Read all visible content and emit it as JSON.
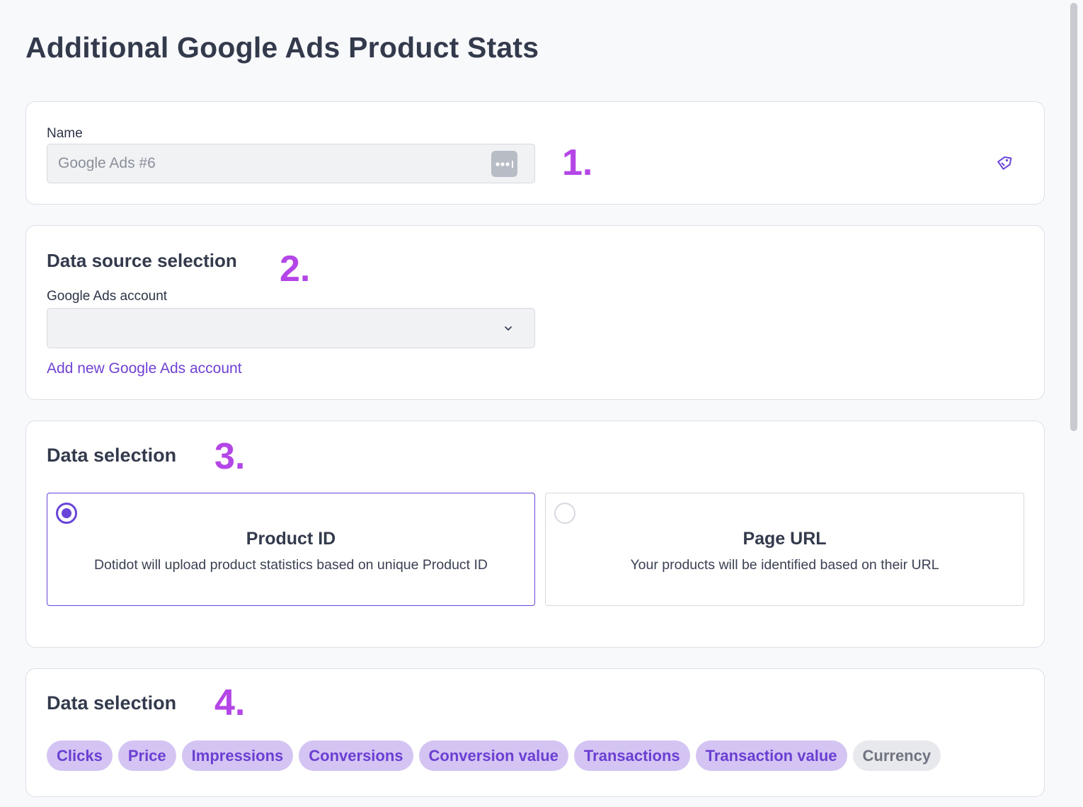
{
  "page": {
    "title": "Additional Google Ads Product Stats"
  },
  "name_section": {
    "label": "Name",
    "value": "Google Ads #6",
    "step": "1.",
    "icon": "tag-icon",
    "dots_icon": "more-dots-icon"
  },
  "source_section": {
    "heading": "Data source selection",
    "step": "2.",
    "account_label": "Google Ads account",
    "account_value": "",
    "add_link": "Add new Google Ads account",
    "chevron_icon": "chevron-down-icon"
  },
  "data_selection_1": {
    "heading": "Data selection",
    "step": "3.",
    "options": [
      {
        "title": "Product ID",
        "description": "Dotidot will upload product statistics based on unique Product ID",
        "selected": true
      },
      {
        "title": "Page URL",
        "description": "Your products will be identified based on their URL",
        "selected": false
      }
    ]
  },
  "data_selection_2": {
    "heading": "Data selection",
    "step": "4.",
    "chips": [
      {
        "label": "Clicks",
        "active": true
      },
      {
        "label": "Price",
        "active": true
      },
      {
        "label": "Impressions",
        "active": true
      },
      {
        "label": "Conversions",
        "active": true
      },
      {
        "label": "Conversion value",
        "active": true
      },
      {
        "label": "Transactions",
        "active": true
      },
      {
        "label": "Transaction value",
        "active": true
      },
      {
        "label": "Currency",
        "active": false
      }
    ]
  },
  "colors": {
    "accent": "#6944d8",
    "step_number": "#b445e6",
    "chip_active_bg": "#d4c4f4",
    "chip_active_text": "#6a3fd2",
    "chip_inactive_bg": "#e8e9ec"
  }
}
